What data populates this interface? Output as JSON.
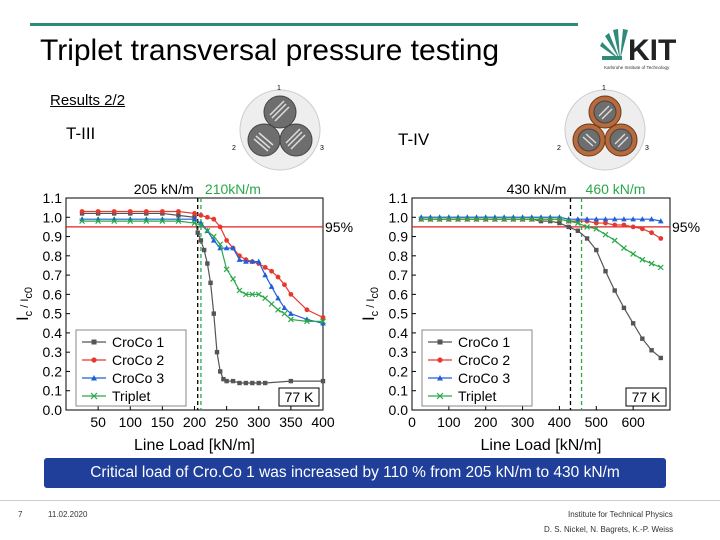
{
  "header": {
    "title": "Triplet transversal pressure testing",
    "subtitle": "Results 2/2",
    "logo_text": "KIT",
    "logo_tagline": "Karlsruhe Institute of Technology"
  },
  "samples": {
    "left": "T-III",
    "right": "T-IV"
  },
  "schematic_labels": [
    "1",
    "2",
    "3"
  ],
  "callout": "Critical load of Cro.Co 1 was increased by 110 % from 205 kN/m to 430 kN/m",
  "footer": {
    "slide_number": "7",
    "date": "11.02.2020",
    "institute": "Institute for Technical Physics",
    "authors": "D. S. Nickel, N. Bagrets, K.-P. Weiss"
  },
  "colors": {
    "accent": "#2e8b7a",
    "callout_bg": "#1f3f9a",
    "croco1": "#555555",
    "croco2": "#e8382e",
    "croco3": "#1f5fd8",
    "triplet": "#2aa84a",
    "threshold": "#e02020",
    "dashed_black": "#000000",
    "dashed_green": "#2aa84a"
  },
  "chart_data": [
    {
      "type": "line",
      "sample": "T-III",
      "xlabel": "Line Load [kN/m]",
      "ylabel": "Ic / Ic0",
      "ylabel_main": "I",
      "ylabel_sub1": "c",
      "ylabel_sep": " / I",
      "ylabel_sub2": "c0",
      "xlim": [
        0,
        400
      ],
      "ylim": [
        0,
        1.1
      ],
      "xticks": [
        50,
        100,
        150,
        200,
        250,
        300,
        350,
        400
      ],
      "yticks": [
        0.0,
        0.1,
        0.2,
        0.3,
        0.4,
        0.5,
        0.6,
        0.7,
        0.8,
        0.9,
        1.0,
        1.1
      ],
      "threshold": {
        "value": 0.95,
        "label": "95%"
      },
      "critical_loads": [
        {
          "x": 205,
          "label": "205 kN/m",
          "style": "black"
        },
        {
          "x": 210,
          "label": "210kN/m",
          "style": "green"
        }
      ],
      "temperature": "77 K",
      "series": [
        {
          "name": "CroCo 1",
          "marker": "square",
          "color": "#555555",
          "x": [
            25,
            50,
            75,
            100,
            125,
            150,
            175,
            200,
            205,
            210,
            215,
            220,
            225,
            230,
            235,
            240,
            245,
            250,
            260,
            270,
            280,
            290,
            300,
            310,
            350,
            400
          ],
          "y": [
            1.02,
            1.02,
            1.02,
            1.02,
            1.02,
            1.02,
            1.01,
            1.0,
            0.92,
            0.88,
            0.83,
            0.76,
            0.66,
            0.5,
            0.3,
            0.2,
            0.16,
            0.15,
            0.15,
            0.14,
            0.14,
            0.14,
            0.14,
            0.14,
            0.15,
            0.15
          ]
        },
        {
          "name": "CroCo 2",
          "marker": "circle",
          "color": "#e8382e",
          "x": [
            25,
            50,
            75,
            100,
            125,
            150,
            175,
            200,
            210,
            220,
            230,
            240,
            250,
            260,
            270,
            280,
            290,
            300,
            310,
            320,
            330,
            340,
            350,
            375,
            400
          ],
          "y": [
            1.03,
            1.03,
            1.03,
            1.03,
            1.03,
            1.03,
            1.03,
            1.02,
            1.01,
            1.0,
            0.99,
            0.95,
            0.88,
            0.84,
            0.8,
            0.78,
            0.77,
            0.76,
            0.74,
            0.72,
            0.69,
            0.65,
            0.6,
            0.52,
            0.48
          ]
        },
        {
          "name": "CroCo 3",
          "marker": "triangle",
          "color": "#1f5fd8",
          "x": [
            25,
            50,
            75,
            100,
            125,
            150,
            175,
            200,
            210,
            220,
            230,
            240,
            250,
            260,
            270,
            280,
            290,
            300,
            310,
            320,
            330,
            340,
            350,
            375,
            400
          ],
          "y": [
            0.99,
            0.99,
            0.99,
            0.99,
            0.99,
            0.99,
            0.99,
            0.99,
            0.97,
            0.93,
            0.88,
            0.84,
            0.84,
            0.84,
            0.78,
            0.77,
            0.77,
            0.77,
            0.7,
            0.64,
            0.58,
            0.53,
            0.5,
            0.47,
            0.45
          ]
        },
        {
          "name": "Triplet",
          "marker": "cross",
          "color": "#2aa84a",
          "x": [
            25,
            50,
            75,
            100,
            125,
            150,
            175,
            200,
            210,
            220,
            230,
            240,
            250,
            260,
            270,
            280,
            290,
            300,
            310,
            320,
            330,
            340,
            350,
            375,
            400
          ],
          "y": [
            0.98,
            0.98,
            0.98,
            0.98,
            0.98,
            0.98,
            0.98,
            0.97,
            0.96,
            0.93,
            0.9,
            0.86,
            0.73,
            0.68,
            0.62,
            0.6,
            0.6,
            0.6,
            0.58,
            0.55,
            0.52,
            0.5,
            0.47,
            0.46,
            0.46
          ]
        }
      ]
    },
    {
      "type": "line",
      "sample": "T-IV",
      "xlabel": "Line Load [kN/m]",
      "ylabel": "Ic / Ic0",
      "ylabel_main": "I",
      "ylabel_sub1": "c",
      "ylabel_sep": " / I",
      "ylabel_sub2": "c0",
      "xlim": [
        0,
        700
      ],
      "ylim": [
        0,
        1.1
      ],
      "xticks": [
        0,
        100,
        200,
        300,
        400,
        500,
        600
      ],
      "yticks": [
        0.0,
        0.1,
        0.2,
        0.3,
        0.4,
        0.5,
        0.6,
        0.7,
        0.8,
        0.9,
        1.0,
        1.1
      ],
      "threshold": {
        "value": 0.95,
        "label": "95%"
      },
      "critical_loads": [
        {
          "x": 430,
          "label": "430 kN/m",
          "style": "black"
        },
        {
          "x": 460,
          "label": "460 kN/m",
          "style": "green"
        }
      ],
      "temperature": "77 K",
      "series": [
        {
          "name": "CroCo 1",
          "marker": "square",
          "color": "#555555",
          "x": [
            25,
            50,
            75,
            100,
            125,
            150,
            175,
            200,
            225,
            250,
            275,
            300,
            325,
            350,
            375,
            400,
            425,
            450,
            475,
            500,
            525,
            550,
            575,
            600,
            625,
            650,
            675
          ],
          "y": [
            0.99,
            0.99,
            0.99,
            0.99,
            0.99,
            0.99,
            0.99,
            0.99,
            0.99,
            0.99,
            0.99,
            0.99,
            0.99,
            0.98,
            0.98,
            0.97,
            0.95,
            0.93,
            0.89,
            0.83,
            0.72,
            0.62,
            0.53,
            0.45,
            0.37,
            0.31,
            0.27
          ]
        },
        {
          "name": "CroCo 2",
          "marker": "circle",
          "color": "#e8382e",
          "x": [
            25,
            50,
            75,
            100,
            125,
            150,
            175,
            200,
            225,
            250,
            275,
            300,
            325,
            350,
            375,
            400,
            425,
            450,
            475,
            500,
            525,
            550,
            575,
            600,
            625,
            650,
            675
          ],
          "y": [
            0.99,
            0.99,
            0.99,
            0.99,
            0.99,
            0.99,
            0.99,
            0.99,
            0.99,
            0.99,
            0.99,
            0.99,
            0.99,
            0.99,
            0.99,
            0.99,
            0.98,
            0.98,
            0.98,
            0.97,
            0.97,
            0.96,
            0.96,
            0.95,
            0.94,
            0.92,
            0.89
          ]
        },
        {
          "name": "CroCo 3",
          "marker": "triangle",
          "color": "#1f5fd8",
          "x": [
            25,
            50,
            75,
            100,
            125,
            150,
            175,
            200,
            225,
            250,
            275,
            300,
            325,
            350,
            375,
            400,
            425,
            450,
            475,
            500,
            525,
            550,
            575,
            600,
            625,
            650,
            675
          ],
          "y": [
            1.0,
            1.0,
            1.0,
            1.0,
            1.0,
            1.0,
            1.0,
            1.0,
            1.0,
            1.0,
            1.0,
            1.0,
            1.0,
            1.0,
            1.0,
            1.0,
            0.99,
            0.99,
            0.99,
            0.99,
            0.99,
            0.99,
            0.99,
            0.99,
            0.99,
            0.99,
            0.98
          ]
        },
        {
          "name": "Triplet",
          "marker": "cross",
          "color": "#2aa84a",
          "x": [
            25,
            50,
            75,
            100,
            125,
            150,
            175,
            200,
            225,
            250,
            275,
            300,
            325,
            350,
            375,
            400,
            425,
            450,
            475,
            500,
            525,
            550,
            575,
            600,
            625,
            650,
            675
          ],
          "y": [
            0.99,
            0.99,
            0.99,
            0.99,
            0.99,
            0.99,
            0.99,
            0.99,
            0.99,
            0.99,
            0.99,
            0.99,
            0.99,
            0.99,
            0.99,
            0.99,
            0.98,
            0.97,
            0.95,
            0.94,
            0.91,
            0.88,
            0.84,
            0.81,
            0.78,
            0.76,
            0.74
          ]
        }
      ]
    }
  ]
}
